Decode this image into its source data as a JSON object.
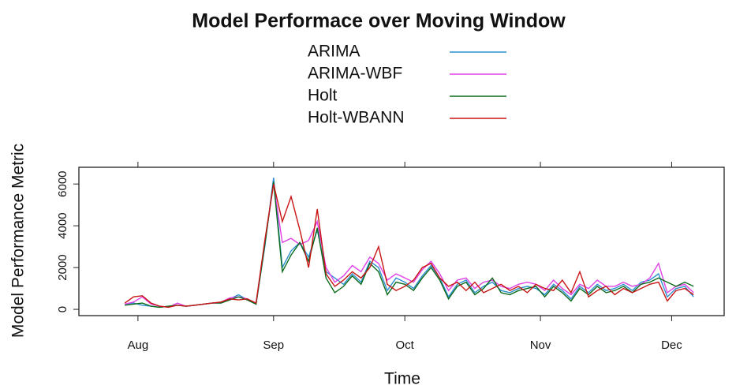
{
  "chart_data": {
    "type": "line",
    "title": "Model Performace over Moving Window",
    "x_label": "Time",
    "y_label": "Model Performance Metric",
    "legend": "top",
    "x": [
      -2,
      0,
      2,
      4,
      6,
      8,
      10,
      12,
      14,
      16,
      18,
      20,
      22,
      24,
      26,
      28,
      30,
      32,
      34,
      36,
      38,
      40,
      42,
      44,
      46,
      48,
      50,
      52,
      54,
      56,
      58,
      60,
      62,
      64,
      66,
      68,
      70,
      72,
      74,
      76,
      78,
      80,
      82,
      84,
      86,
      88,
      90,
      92,
      94,
      96,
      98,
      100,
      102,
      104,
      106,
      108,
      110,
      112,
      114,
      116,
      118,
      120,
      122,
      124,
      126,
      128
    ],
    "xlim": [
      -12.5,
      135
    ],
    "xticks": [
      {
        "value": 1,
        "label": "Aug"
      },
      {
        "value": 32,
        "label": "Sep"
      },
      {
        "value": 62,
        "label": "Oct"
      },
      {
        "value": 93,
        "label": "Nov"
      },
      {
        "value": 123,
        "label": "Dec"
      }
    ],
    "ylim": [
      -300,
      6800
    ],
    "yticks": [
      0,
      2000,
      4000,
      6000
    ],
    "series": [
      {
        "name": "ARIMA",
        "color": "#2b8fd0",
        "values": [
          250,
          300,
          200,
          150,
          100,
          150,
          200,
          150,
          200,
          250,
          300,
          300,
          500,
          700,
          450,
          250,
          3000,
          6300,
          2000,
          2800,
          3200,
          2500,
          3800,
          1800,
          1500,
          1200,
          1700,
          1300,
          2300,
          2000,
          900,
          1500,
          1300,
          1000,
          1600,
          2100,
          1500,
          600,
          1200,
          1400,
          800,
          1100,
          1300,
          900,
          800,
          1000,
          1100,
          1000,
          700,
          1200,
          900,
          500,
          1100,
          800,
          1200,
          900,
          1000,
          1200,
          900,
          1300,
          1400,
          1700,
          600,
          1000,
          1100,
          600
        ]
      },
      {
        "name": "ARIMA-WBF",
        "color": "#e040e6",
        "values": [
          250,
          350,
          600,
          250,
          150,
          100,
          300,
          150,
          200,
          250,
          300,
          350,
          550,
          600,
          500,
          300,
          3200,
          6000,
          3200,
          3400,
          3100,
          3300,
          4200,
          2000,
          1300,
          1600,
          2100,
          1800,
          2500,
          2200,
          1400,
          1700,
          1500,
          1300,
          1900,
          2300,
          1700,
          900,
          1400,
          1500,
          1000,
          1300,
          1400,
          1100,
          1000,
          1200,
          1300,
          1200,
          900,
          1400,
          1000,
          700,
          1200,
          1000,
          1400,
          1100,
          1100,
          1300,
          1100,
          1200,
          1500,
          2200,
          800,
          1100,
          1200,
          800
        ]
      },
      {
        "name": "Holt",
        "color": "#0a6a1a",
        "values": [
          200,
          250,
          300,
          150,
          100,
          150,
          200,
          150,
          200,
          250,
          300,
          300,
          450,
          600,
          450,
          250,
          3100,
          6100,
          1800,
          2600,
          3200,
          2300,
          3900,
          1500,
          800,
          1100,
          1600,
          1200,
          2200,
          1800,
          700,
          1300,
          1200,
          900,
          1500,
          2000,
          1400,
          500,
          1100,
          1300,
          700,
          1000,
          1500,
          800,
          700,
          900,
          1000,
          1100,
          600,
          1100,
          800,
          400,
          1000,
          700,
          1100,
          800,
          900,
          1100,
          800,
          1200,
          1300,
          1500,
          1300,
          1100,
          1300,
          1100
        ]
      },
      {
        "name": "Holt-WBANN",
        "color": "#c81414",
        "values": [
          300,
          600,
          650,
          300,
          150,
          100,
          200,
          150,
          200,
          250,
          300,
          350,
          500,
          450,
          500,
          300,
          3300,
          6000,
          4200,
          5400,
          3800,
          2000,
          4800,
          1700,
          1100,
          1400,
          1800,
          1500,
          2000,
          3000,
          1200,
          900,
          1100,
          1400,
          2000,
          2200,
          1500,
          1100,
          1300,
          900,
          1300,
          800,
          1000,
          1200,
          900,
          1100,
          800,
          1200,
          1000,
          900,
          1400,
          800,
          1800,
          600,
          900,
          1100,
          700,
          1000,
          800,
          1000,
          1200,
          1300,
          400,
          900,
          1000,
          700
        ]
      }
    ]
  }
}
